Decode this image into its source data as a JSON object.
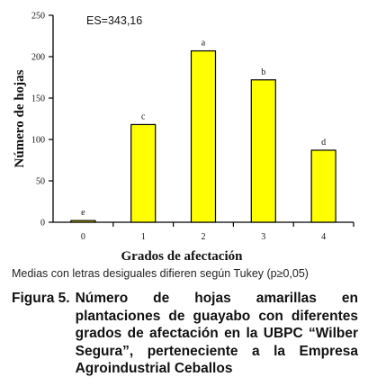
{
  "chart_data": {
    "type": "bar",
    "categories": [
      "0",
      "1",
      "2",
      "3",
      "4"
    ],
    "values": [
      2,
      118,
      207,
      172,
      87
    ],
    "letters": [
      "e",
      "c",
      "a",
      "b",
      "d"
    ],
    "ylabel": "Número de hojas",
    "xlabel": "Grados de afectación",
    "ylim": [
      0,
      250
    ],
    "yticks": [
      "0",
      "50",
      "100",
      "150",
      "200",
      "250"
    ],
    "annotation": "ES=343,16",
    "grid": false,
    "bar_color": "#ffff00",
    "bar_edge_color": "#000000"
  },
  "note": "Medias con letras desiguales difieren según Tukey (p≥0,05)",
  "caption": {
    "label": "Figura 5.",
    "text": "Número de hojas amarillas en plantaciones de guayabo con diferentes grados de afectación en la UBPC “Wilber Segura”, perteneciente a la Empresa Agroindustrial Ceballos"
  }
}
